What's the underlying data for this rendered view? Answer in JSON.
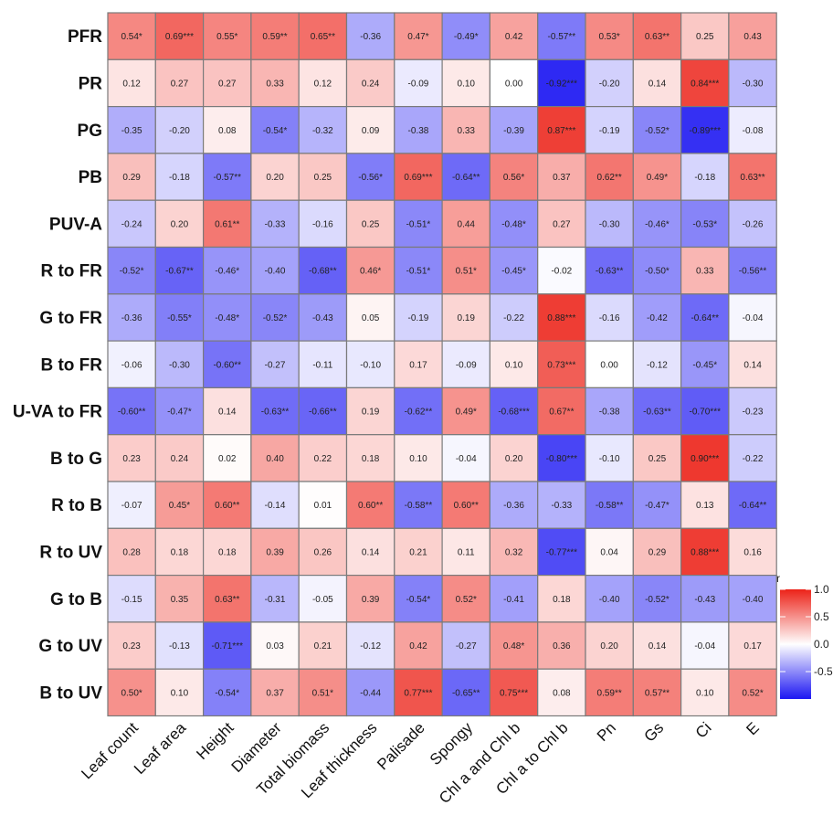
{
  "chart_data": {
    "type": "heatmap",
    "rows": [
      "PFR",
      "PR",
      "PG",
      "PB",
      "PUV-A",
      "R to FR",
      "G to FR",
      "B to FR",
      "U-VA to FR",
      "B to G",
      "R to B",
      "R to UV",
      "G to B",
      "G to UV",
      "B to UV"
    ],
    "columns": [
      "Leaf count",
      "Leaf area",
      "Height",
      "Diameter",
      "Total biomass",
      "Leaf thickness",
      "Palisade",
      "Spongy",
      "Chl a and Chl b",
      "Chl a to Chl b",
      "Pn",
      "Gs",
      "Ci",
      "E"
    ],
    "values": [
      [
        0.54,
        0.69,
        0.55,
        0.59,
        0.65,
        -0.36,
        0.47,
        -0.49,
        0.42,
        -0.57,
        0.53,
        0.63,
        0.25,
        0.43
      ],
      [
        0.12,
        0.27,
        0.27,
        0.33,
        0.12,
        0.24,
        -0.09,
        0.1,
        0.0,
        -0.92,
        -0.2,
        0.14,
        0.84,
        -0.3
      ],
      [
        -0.35,
        -0.2,
        0.08,
        -0.54,
        -0.32,
        0.09,
        -0.38,
        0.33,
        -0.39,
        0.87,
        -0.19,
        -0.52,
        -0.89,
        -0.08
      ],
      [
        0.29,
        -0.18,
        -0.57,
        0.2,
        0.25,
        -0.56,
        0.69,
        -0.64,
        0.56,
        0.37,
        0.62,
        0.49,
        -0.18,
        0.63
      ],
      [
        -0.24,
        0.2,
        0.61,
        -0.33,
        -0.16,
        0.25,
        -0.51,
        0.44,
        -0.48,
        0.27,
        -0.3,
        -0.46,
        -0.53,
        -0.26
      ],
      [
        -0.52,
        -0.67,
        -0.46,
        -0.4,
        -0.68,
        0.46,
        -0.51,
        0.51,
        -0.45,
        -0.02,
        -0.63,
        -0.5,
        0.33,
        -0.56
      ],
      [
        -0.36,
        -0.55,
        -0.48,
        -0.52,
        -0.43,
        0.05,
        -0.19,
        0.19,
        -0.22,
        0.88,
        -0.16,
        -0.42,
        -0.64,
        -0.04
      ],
      [
        -0.06,
        -0.3,
        -0.6,
        -0.27,
        -0.11,
        -0.1,
        0.17,
        -0.09,
        0.1,
        0.73,
        0.0,
        -0.12,
        -0.45,
        0.14
      ],
      [
        -0.6,
        -0.47,
        0.14,
        -0.63,
        -0.66,
        0.19,
        -0.62,
        0.49,
        -0.68,
        0.67,
        -0.38,
        -0.63,
        -0.7,
        -0.23
      ],
      [
        0.23,
        0.24,
        0.02,
        0.4,
        0.22,
        0.18,
        0.1,
        -0.04,
        0.2,
        -0.8,
        -0.1,
        0.25,
        0.9,
        -0.22
      ],
      [
        -0.07,
        0.45,
        0.6,
        -0.14,
        0.01,
        0.6,
        -0.58,
        0.6,
        -0.36,
        -0.33,
        -0.58,
        -0.47,
        0.13,
        -0.64
      ],
      [
        0.28,
        0.18,
        0.18,
        0.39,
        0.26,
        0.14,
        0.21,
        0.11,
        0.32,
        -0.77,
        0.04,
        0.29,
        0.88,
        0.16
      ],
      [
        -0.15,
        0.35,
        0.63,
        -0.31,
        -0.05,
        0.39,
        -0.54,
        0.52,
        -0.41,
        0.18,
        -0.4,
        -0.52,
        -0.43,
        -0.4
      ],
      [
        0.23,
        -0.13,
        -0.71,
        0.03,
        0.21,
        -0.12,
        0.42,
        -0.27,
        0.48,
        0.36,
        0.2,
        0.14,
        -0.04,
        0.17
      ],
      [
        0.5,
        0.1,
        -0.54,
        0.37,
        0.51,
        -0.44,
        0.77,
        -0.65,
        0.75,
        0.08,
        0.59,
        0.57,
        0.1,
        0.52
      ]
    ],
    "labels": [
      [
        "0.54*",
        "0.69***",
        "0.55*",
        "0.59**",
        "0.65**",
        "-0.36",
        "0.47*",
        "-0.49*",
        "0.42",
        "-0.57**",
        "0.53*",
        "0.63**",
        "0.25",
        "0.43"
      ],
      [
        "0.12",
        "0.27",
        "0.27",
        "0.33",
        "0.12",
        "0.24",
        "-0.09",
        "0.10",
        "0.00",
        "-0.92***",
        "-0.20",
        "0.14",
        "0.84***",
        "-0.30"
      ],
      [
        "-0.35",
        "-0.20",
        "0.08",
        "-0.54*",
        "-0.32",
        "0.09",
        "-0.38",
        "0.33",
        "-0.39",
        "0.87***",
        "-0.19",
        "-0.52*",
        "-0.89***",
        "-0.08"
      ],
      [
        "0.29",
        "-0.18",
        "-0.57**",
        "0.20",
        "0.25",
        "-0.56*",
        "0.69***",
        "-0.64**",
        "0.56*",
        "0.37",
        "0.62**",
        "0.49*",
        "-0.18",
        "0.63**"
      ],
      [
        "-0.24",
        "0.20",
        "0.61**",
        "-0.33",
        "-0.16",
        "0.25",
        "-0.51*",
        "0.44",
        "-0.48*",
        "0.27",
        "-0.30",
        "-0.46*",
        "-0.53*",
        "-0.26"
      ],
      [
        "-0.52*",
        "-0.67**",
        "-0.46*",
        "-0.40",
        "-0.68**",
        "0.46*",
        "-0.51*",
        "0.51*",
        "-0.45*",
        "-0.02",
        "-0.63**",
        "-0.50*",
        "0.33",
        "-0.56**"
      ],
      [
        "-0.36",
        "-0.55*",
        "-0.48*",
        "-0.52*",
        "-0.43",
        "0.05",
        "-0.19",
        "0.19",
        "-0.22",
        "0.88***",
        "-0.16",
        "-0.42",
        "-0.64**",
        "-0.04"
      ],
      [
        "-0.06",
        "-0.30",
        "-0.60**",
        "-0.27",
        "-0.11",
        "-0.10",
        "0.17",
        "-0.09",
        "0.10",
        "0.73***",
        "0.00",
        "-0.12",
        "-0.45*",
        "0.14"
      ],
      [
        "-0.60**",
        "-0.47*",
        "0.14",
        "-0.63**",
        "-0.66**",
        "0.19",
        "-0.62**",
        "0.49*",
        "-0.68***",
        "0.67**",
        "-0.38",
        "-0.63**",
        "-0.70***",
        "-0.23"
      ],
      [
        "0.23",
        "0.24",
        "0.02",
        "0.40",
        "0.22",
        "0.18",
        "0.10",
        "-0.04",
        "0.20",
        "-0.80***",
        "-0.10",
        "0.25",
        "0.90***",
        "-0.22"
      ],
      [
        "-0.07",
        "0.45*",
        "0.60**",
        "-0.14",
        "0.01",
        "0.60**",
        "-0.58**",
        "0.60**",
        "-0.36",
        "-0.33",
        "-0.58**",
        "-0.47*",
        "0.13",
        "-0.64**"
      ],
      [
        "0.28",
        "0.18",
        "0.18",
        "0.39",
        "0.26",
        "0.14",
        "0.21",
        "0.11",
        "0.32",
        "-0.77***",
        "0.04",
        "0.29",
        "0.88***",
        "0.16"
      ],
      [
        "-0.15",
        "0.35",
        "0.63**",
        "-0.31",
        "-0.05",
        "0.39",
        "-0.54*",
        "0.52*",
        "-0.41",
        "0.18",
        "-0.40",
        "-0.52*",
        "-0.43",
        "-0.40"
      ],
      [
        "0.23",
        "-0.13",
        "-0.71***",
        "0.03",
        "0.21",
        "-0.12",
        "0.42",
        "-0.27",
        "0.48*",
        "0.36",
        "0.20",
        "0.14",
        "-0.04",
        "0.17"
      ],
      [
        "0.50*",
        "0.10",
        "-0.54*",
        "0.37",
        "0.51*",
        "-0.44",
        "0.77***",
        "-0.65**",
        "0.75***",
        "0.08",
        "0.59**",
        "0.57**",
        "0.10",
        "0.52*"
      ]
    ],
    "legend": {
      "title": "r",
      "ticks": [
        "1.0",
        "0.5",
        "0.0",
        "-0.5"
      ],
      "tick_values": [
        1.0,
        0.5,
        0.0,
        -0.5
      ],
      "range": [
        -1,
        1
      ],
      "colors": {
        "low": "#1c16f2",
        "mid": "#ffffff",
        "high": "#ec2218"
      }
    }
  }
}
